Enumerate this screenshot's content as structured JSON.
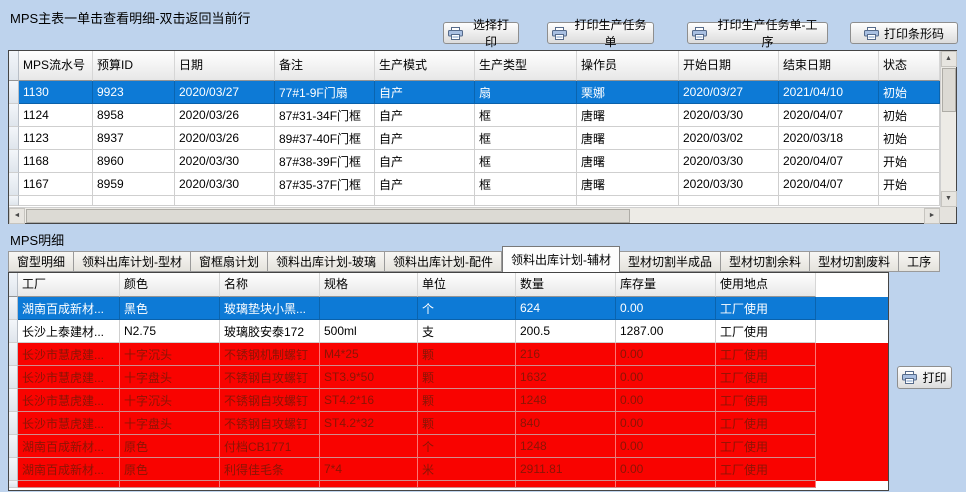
{
  "colors": {
    "window_bg": "#bed3ed",
    "selection_blue": "#0d7ad6",
    "alert_red": "#f90300",
    "alert_text": "#8a1505"
  },
  "icons": {
    "scroll_up": "▲",
    "scroll_down": "▼",
    "scroll_left": "◄",
    "scroll_right": "►"
  },
  "main_panel": {
    "title": "MPS主表一单击查看明细-双击返回当前行",
    "toolbar": {
      "select_print": "选择打印",
      "print_task": "打印生产任务单",
      "print_task_process": "打印生产任务单-工序",
      "print_barcode": "打印条形码"
    },
    "grid": {
      "columns": [
        "MPS流水号",
        "预算ID",
        "日期",
        "备注",
        "生产模式",
        "生产类型",
        "操作员",
        "开始日期",
        "结束日期",
        "状态"
      ],
      "rows": [
        {
          "state": "selected",
          "cells": [
            "1130",
            "9923",
            "2020/03/27",
            "77#1-9F门扇",
            "自产",
            "扇",
            "栗娜",
            "2020/03/27",
            "2021/04/10",
            "初始"
          ]
        },
        {
          "state": "normal",
          "cells": [
            "1124",
            "8958",
            "2020/03/26",
            "87#31-34F门框",
            "自产",
            "框",
            "唐曙",
            "2020/03/30",
            "2020/04/07",
            "初始"
          ]
        },
        {
          "state": "normal",
          "cells": [
            "1123",
            "8937",
            "2020/03/26",
            "89#37-40F门框",
            "自产",
            "框",
            "唐曙",
            "2020/03/02",
            "2020/03/18",
            "初始"
          ]
        },
        {
          "state": "normal",
          "cells": [
            "1168",
            "8960",
            "2020/03/30",
            "87#38-39F门框",
            "自产",
            "框",
            "唐曙",
            "2020/03/30",
            "2020/04/07",
            "开始"
          ]
        },
        {
          "state": "normal",
          "cells": [
            "1167",
            "8959",
            "2020/03/30",
            "87#35-37F门框",
            "自产",
            "框",
            "唐曙",
            "2020/03/30",
            "2020/04/07",
            "开始"
          ]
        }
      ]
    }
  },
  "detail_panel": {
    "title": "MPS明细",
    "tabs": [
      "窗型明细",
      "领料出库计划-型材",
      "窗框扇计划",
      "领料出库计划-玻璃",
      "领料出库计划-配件",
      "领料出库计划-辅材",
      "型材切割半成品",
      "型材切割余料",
      "型材切割废料",
      "工序"
    ],
    "active_tab_index": 5,
    "print_button": "打印",
    "grid": {
      "columns": [
        "工厂",
        "颜色",
        "名称",
        "规格",
        "单位",
        "数量",
        "库存量",
        "使用地点"
      ],
      "rows": [
        {
          "state": "selected",
          "cells": [
            "湖南百成新材...",
            "黑色",
            "玻璃垫块小黑...",
            "",
            "个",
            "624",
            "0.00",
            "工厂使用"
          ]
        },
        {
          "state": "normal",
          "cells": [
            "长沙上泰建材...",
            "N2.75",
            "玻璃胶安泰172",
            "500ml",
            "支",
            "200.5",
            "1287.00",
            "工厂使用"
          ]
        },
        {
          "state": "alert",
          "cells": [
            "长沙市慧虎建...",
            "十字沉头",
            "不锈钢机制螺钉",
            "M4*25",
            "颗",
            "216",
            "0.00",
            "工厂使用"
          ]
        },
        {
          "state": "alert",
          "cells": [
            "长沙市慧虎建...",
            "十字盘头",
            "不锈钢自攻螺钉",
            "ST3.9*50",
            "颗",
            "1632",
            "0.00",
            "工厂使用"
          ]
        },
        {
          "state": "alert",
          "cells": [
            "长沙市慧虎建...",
            "十字沉头",
            "不锈钢自攻螺钉",
            "ST4.2*16",
            "颗",
            "1248",
            "0.00",
            "工厂使用"
          ]
        },
        {
          "state": "alert",
          "cells": [
            "长沙市慧虎建...",
            "十字盘头",
            "不锈钢自攻螺钉",
            "ST4.2*32",
            "颗",
            "840",
            "0.00",
            "工厂使用"
          ]
        },
        {
          "state": "alert",
          "cells": [
            "湖南百成新材...",
            "原色",
            "付档CB1771",
            "",
            "个",
            "1248",
            "0.00",
            "工厂使用"
          ]
        },
        {
          "state": "alert",
          "cells": [
            "湖南百成新材...",
            "原色",
            "利得佳毛条",
            "7*4",
            "米",
            "2911.81",
            "0.00",
            "工厂使用"
          ]
        }
      ]
    }
  }
}
